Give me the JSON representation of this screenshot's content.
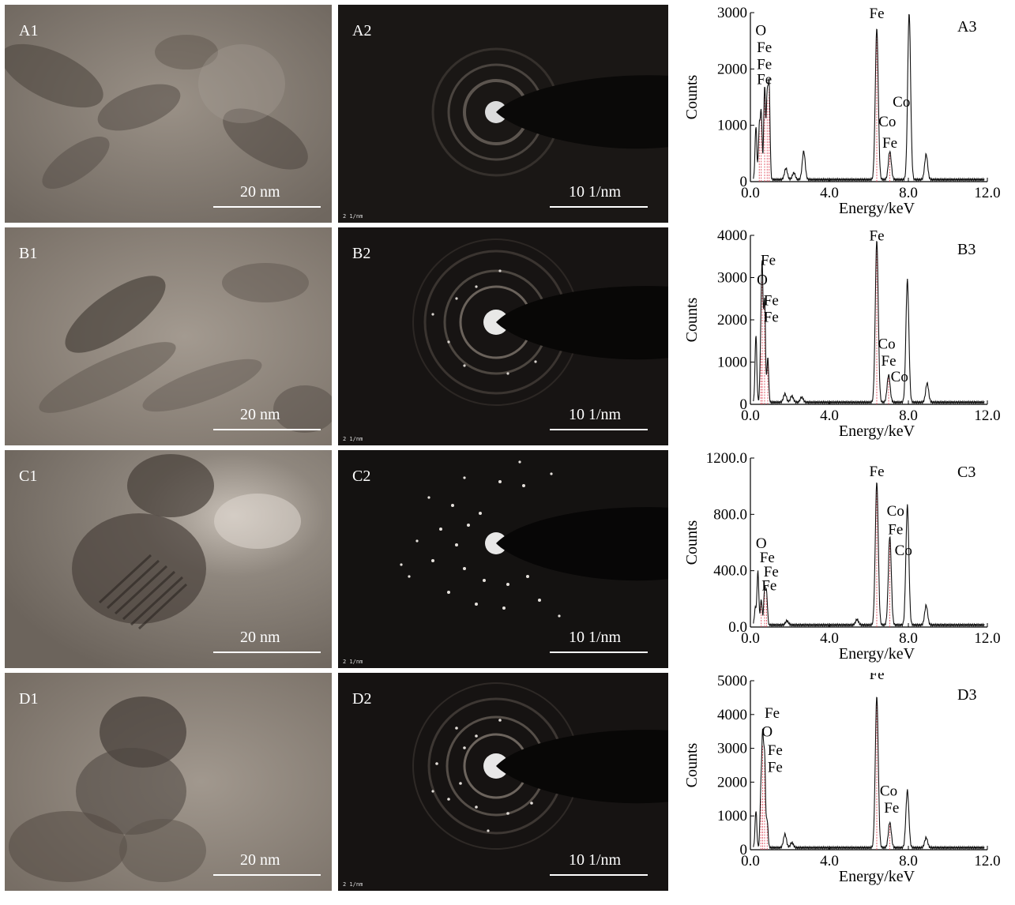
{
  "figure": {
    "rows": [
      {
        "tem": {
          "label": "A1",
          "scale_text": "20 nm"
        },
        "saed": {
          "label": "A2",
          "scale_text": "10 1/nm",
          "tiny_tag": "2 1/nm",
          "spots": "few"
        },
        "eds": {
          "panel_label": "A3",
          "chart_data": {
            "type": "line",
            "xlabel": "Energy/keV",
            "ylabel": "Counts",
            "xlim": [
              0,
              12
            ],
            "ylim": [
              0,
              3000
            ],
            "xticks": [
              "0.0",
              "4.0",
              "8.0",
              "12.0"
            ],
            "yticks": [
              "0",
              "1000",
              "2000",
              "3000"
            ],
            "peaks": [
              {
                "x": 0.28,
                "y": 950
              },
              {
                "x": 0.45,
                "y": 900
              },
              {
                "x": 0.55,
                "y": 1150
              },
              {
                "x": 0.72,
                "y": 1650
              },
              {
                "x": 0.85,
                "y": 1450
              },
              {
                "x": 0.95,
                "y": 1650
              },
              {
                "x": 1.8,
                "y": 200
              },
              {
                "x": 2.2,
                "y": 120
              },
              {
                "x": 2.7,
                "y": 500
              },
              {
                "x": 6.4,
                "y": 2700
              },
              {
                "x": 7.06,
                "y": 500
              },
              {
                "x": 8.04,
                "y": 2950
              },
              {
                "x": 8.9,
                "y": 450
              }
            ],
            "element_labels": [
              {
                "text": "O",
                "x": 0.53,
                "y": 2600
              },
              {
                "text": "Fe",
                "x": 0.705,
                "y": 2300
              },
              {
                "text": "Fe",
                "x": 0.705,
                "y": 2000
              },
              {
                "text": "Fe",
                "x": 0.705,
                "y": 1730
              },
              {
                "text": "Fe",
                "x": 6.4,
                "y": 2900
              },
              {
                "text": "Co",
                "x": 7.65,
                "y": 1330
              },
              {
                "text": "Co",
                "x": 6.93,
                "y": 980
              },
              {
                "text": "Fe",
                "x": 7.06,
                "y": 600
              }
            ]
          }
        }
      },
      {
        "tem": {
          "label": "B1",
          "scale_text": "20 nm"
        },
        "saed": {
          "label": "B2",
          "scale_text": "10 1/nm",
          "tiny_tag": "2 1/nm",
          "spots": "some"
        },
        "eds": {
          "panel_label": "B3",
          "chart_data": {
            "type": "line",
            "xlabel": "Energy/keV",
            "ylabel": "Counts",
            "xlim": [
              0,
              12
            ],
            "ylim": [
              0,
              4000
            ],
            "xticks": [
              "0.0",
              "4.0",
              "8.0",
              "12.0"
            ],
            "yticks": [
              "0",
              "1000",
              "2000",
              "3000",
              "4000"
            ],
            "peaks": [
              {
                "x": 0.28,
                "y": 1600
              },
              {
                "x": 0.53,
                "y": 1200
              },
              {
                "x": 0.6,
                "y": 2900
              },
              {
                "x": 0.72,
                "y": 2400
              },
              {
                "x": 0.88,
                "y": 1050
              },
              {
                "x": 1.75,
                "y": 200
              },
              {
                "x": 2.1,
                "y": 150
              },
              {
                "x": 2.6,
                "y": 120
              },
              {
                "x": 6.4,
                "y": 3850
              },
              {
                "x": 7.0,
                "y": 650
              },
              {
                "x": 7.95,
                "y": 2900
              },
              {
                "x": 8.95,
                "y": 450
              }
            ],
            "element_labels": [
              {
                "text": "Fe",
                "x": 0.9,
                "y": 3300
              },
              {
                "text": "O",
                "x": 0.6,
                "y": 2830
              },
              {
                "text": "Fe",
                "x": 1.05,
                "y": 2350
              },
              {
                "text": "Fe",
                "x": 1.05,
                "y": 1950
              },
              {
                "text": "Fe",
                "x": 6.4,
                "y": 3880
              },
              {
                "text": "Co",
                "x": 6.9,
                "y": 1320
              },
              {
                "text": "Fe",
                "x": 7.0,
                "y": 920
              },
              {
                "text": "Co",
                "x": 7.55,
                "y": 540
              }
            ]
          }
        }
      },
      {
        "tem": {
          "label": "C1",
          "scale_text": "20 nm"
        },
        "saed": {
          "label": "C2",
          "scale_text": "10 1/nm",
          "tiny_tag": "2 1/nm",
          "spots": "many"
        },
        "eds": {
          "panel_label": "C3",
          "chart_data": {
            "type": "line",
            "xlabel": "Energy/keV",
            "ylabel": "Counts",
            "xlim": [
              0,
              12
            ],
            "ylim": [
              0,
              1200
            ],
            "xticks": [
              "0.0",
              "4.0",
              "8.0",
              "12.0"
            ],
            "yticks": [
              "0.0",
              "400.0",
              "800.0",
              "1200.0"
            ],
            "peaks": [
              {
                "x": 0.25,
                "y": 120
              },
              {
                "x": 0.38,
                "y": 380
              },
              {
                "x": 0.55,
                "y": 180
              },
              {
                "x": 0.72,
                "y": 250
              },
              {
                "x": 0.82,
                "y": 220
              },
              {
                "x": 1.85,
                "y": 30
              },
              {
                "x": 5.4,
                "y": 40
              },
              {
                "x": 6.4,
                "y": 1020
              },
              {
                "x": 7.06,
                "y": 630
              },
              {
                "x": 7.95,
                "y": 850
              },
              {
                "x": 8.9,
                "y": 140
              }
            ],
            "element_labels": [
              {
                "text": "O",
                "x": 0.55,
                "y": 560
              },
              {
                "text": "Fe",
                "x": 0.85,
                "y": 460
              },
              {
                "text": "Fe",
                "x": 1.05,
                "y": 360
              },
              {
                "text": "Fe",
                "x": 0.95,
                "y": 260
              },
              {
                "text": "Fe",
                "x": 6.4,
                "y": 1070
              },
              {
                "text": "Co",
                "x": 7.35,
                "y": 790
              },
              {
                "text": "Fe",
                "x": 7.35,
                "y": 660
              },
              {
                "text": "Co",
                "x": 7.75,
                "y": 510
              }
            ]
          }
        }
      },
      {
        "tem": {
          "label": "D1",
          "scale_text": "20 nm"
        },
        "saed": {
          "label": "D2",
          "scale_text": "10 1/nm",
          "tiny_tag": "2 1/nm",
          "spots": "some"
        },
        "eds": {
          "panel_label": "D3",
          "chart_data": {
            "type": "line",
            "xlabel": "Energy/keV",
            "ylabel": "Counts",
            "xlim": [
              0,
              12
            ],
            "ylim": [
              0,
              5000
            ],
            "xticks": [
              "0.0",
              "4.0",
              "8.0",
              "12.0"
            ],
            "yticks": [
              "0",
              "1000",
              "2000",
              "3000",
              "4000",
              "5000"
            ],
            "peaks": [
              {
                "x": 0.28,
                "y": 1100
              },
              {
                "x": 0.53,
                "y": 1500
              },
              {
                "x": 0.62,
                "y": 3100
              },
              {
                "x": 0.72,
                "y": 2600
              },
              {
                "x": 0.85,
                "y": 800
              },
              {
                "x": 1.75,
                "y": 400
              },
              {
                "x": 2.1,
                "y": 150
              },
              {
                "x": 6.4,
                "y": 4500
              },
              {
                "x": 7.06,
                "y": 750
              },
              {
                "x": 7.95,
                "y": 1700
              },
              {
                "x": 8.9,
                "y": 300
              }
            ],
            "element_labels": [
              {
                "text": "Fe",
                "x": 1.1,
                "y": 3900
              },
              {
                "text": "O",
                "x": 0.85,
                "y": 3350
              },
              {
                "text": "Fe",
                "x": 1.25,
                "y": 2800
              },
              {
                "text": "Fe",
                "x": 1.25,
                "y": 2300
              },
              {
                "text": "Fe",
                "x": 6.4,
                "y": 5050
              },
              {
                "text": "Co",
                "x": 7.0,
                "y": 1600
              },
              {
                "text": "Fe",
                "x": 7.15,
                "y": 1100
              }
            ]
          }
        }
      }
    ]
  }
}
